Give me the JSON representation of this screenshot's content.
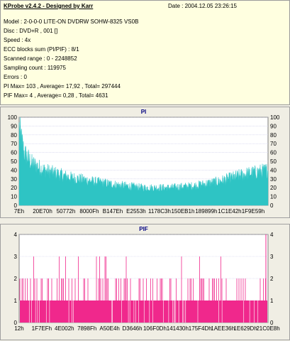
{
  "info": {
    "title": "KProbe v2.4.2 - Designed by Karr",
    "date": "Date : 2004.12.05 23:26:15",
    "lines": [
      "Model : 2-0-0-0 LITE-ON DVDRW SOHW-8325  VS0B",
      "Disc : DVD+R , 001 []",
      "Speed : 4x",
      "ECC blocks sum (PI/PIF) : 8/1",
      "Scanned range : 0 - 2248852",
      "Sampling count : 119975",
      "Errors : 0",
      "PI Max= 103 , Average= 17,92 , Total= 297444",
      "PIF Max= 4 , Average= 0,28 , Total= 4631"
    ]
  },
  "chart_data": [
    {
      "type": "area",
      "title": "PI",
      "ylim": [
        0,
        100
      ],
      "yticks": [
        "0",
        "10",
        "20",
        "30",
        "40",
        "50",
        "60",
        "70",
        "80",
        "90",
        "100"
      ],
      "xticks": [
        "7Eh",
        "20E70h",
        "50772h",
        "8000Fh",
        "B147Eh",
        "E2553h",
        "1178C3h",
        "150EB1h",
        "189899h",
        "1C1E42h",
        "1F9E59h"
      ],
      "color": "#2ec4c4",
      "profile": [
        [
          0,
          88
        ],
        [
          0.02,
          60
        ],
        [
          0.05,
          48
        ],
        [
          0.1,
          40
        ],
        [
          0.2,
          32
        ],
        [
          0.3,
          27
        ],
        [
          0.4,
          23
        ],
        [
          0.5,
          20
        ],
        [
          0.6,
          20
        ],
        [
          0.7,
          22
        ],
        [
          0.8,
          27
        ],
        [
          0.9,
          35
        ],
        [
          1,
          40
        ]
      ]
    },
    {
      "type": "bar",
      "title": "PIF",
      "ylim": [
        0,
        4
      ],
      "yticks": [
        "0",
        "1",
        "2",
        "3",
        "4"
      ],
      "xticks": [
        "12h",
        "1F7EFh",
        "4E002h",
        "7898Fh",
        "A50E4h",
        "D3646h",
        "106F0Dh",
        "141430h",
        "175F4Dh",
        "1AEE36h",
        "1E629Dh",
        "21C0E8h"
      ],
      "color": "#f0288c",
      "baseline": 1,
      "max": 4
    }
  ]
}
